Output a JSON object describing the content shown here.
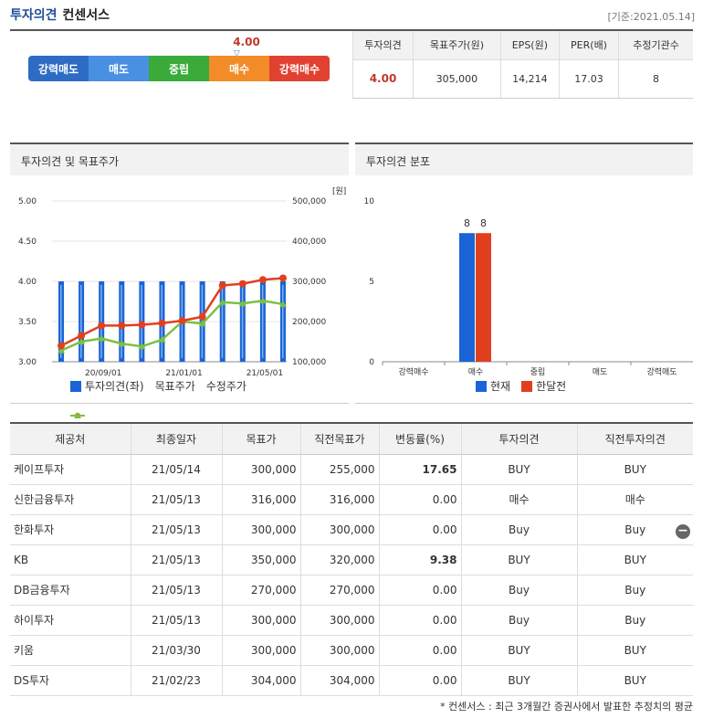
{
  "header": {
    "title": "투자의견",
    "subtitle": "컨센서스",
    "date": "[기준:2021.05.14]"
  },
  "scale": {
    "value": "4.00",
    "marker": "▽",
    "segments": [
      "강력매도",
      "매도",
      "중립",
      "매수",
      "강력매수"
    ]
  },
  "summary": {
    "headers": [
      "투자의견",
      "목표주가(원)",
      "EPS(원)",
      "PER(배)",
      "추정기관수"
    ],
    "values": [
      "4.00",
      "305,000",
      "14,214",
      "17.03",
      "8"
    ]
  },
  "panel_left": {
    "title": "투자의견 및 목표주가",
    "unit": "[원]",
    "legend": [
      "투자의견(좌)",
      "목표주가",
      "수정주가"
    ]
  },
  "panel_right": {
    "title": "투자의견 분포",
    "legend": [
      "현재",
      "한달전"
    ]
  },
  "colors": {
    "blue": "#1a64d6",
    "red": "#e0401e",
    "green": "#7ac143",
    "accent": "#1f4e99"
  },
  "chart_data": [
    {
      "type": "line",
      "title": "투자의견 및 목표주가",
      "y_left_ticks": [
        "5.00",
        "4.50",
        "4.00",
        "3.50",
        "3.00"
      ],
      "y_right_ticks": [
        "500,000",
        "400,000",
        "300,000",
        "200,000",
        "100,000"
      ],
      "x_ticks": [
        "20/09/01",
        "21/01/01",
        "21/05/01"
      ],
      "ylim_left": [
        3.0,
        5.0
      ],
      "ylim_right": [
        100000,
        500000
      ],
      "series": [
        {
          "name": "투자의견(좌)",
          "type": "bar",
          "values": [
            4,
            4,
            4,
            4,
            4,
            4,
            4,
            4,
            4,
            4,
            4,
            4
          ]
        },
        {
          "name": "목표주가",
          "values": [
            140000,
            165000,
            190000,
            190000,
            192000,
            196000,
            202000,
            212000,
            290000,
            294000,
            304000,
            308000
          ]
        },
        {
          "name": "수정주가",
          "values": [
            128000,
            150000,
            158000,
            145000,
            138000,
            155000,
            200000,
            195000,
            248000,
            245000,
            252000,
            243000
          ]
        }
      ]
    },
    {
      "type": "bar",
      "title": "투자의견 분포",
      "categories": [
        "강력매수",
        "매수",
        "중립",
        "매도",
        "강력매도"
      ],
      "y_ticks": [
        "10",
        "5",
        "0"
      ],
      "ylim": [
        0,
        10
      ],
      "series": [
        {
          "name": "현재",
          "values": [
            0,
            8,
            0,
            0,
            0
          ]
        },
        {
          "name": "한달전",
          "values": [
            0,
            8,
            0,
            0,
            0
          ]
        }
      ]
    }
  ],
  "table": {
    "headers": [
      "제공처",
      "최종일자",
      "목표가",
      "직전목표가",
      "변동률(%)",
      "투자의견",
      "직전투자의견"
    ],
    "rows": [
      [
        "케이프투자",
        "21/05/14",
        "300,000",
        "255,000",
        "17.65",
        "BUY",
        "BUY"
      ],
      [
        "신한금융투자",
        "21/05/13",
        "316,000",
        "316,000",
        "0.00",
        "매수",
        "매수"
      ],
      [
        "한화투자",
        "21/05/13",
        "300,000",
        "300,000",
        "0.00",
        "Buy",
        "Buy"
      ],
      [
        "KB",
        "21/05/13",
        "350,000",
        "320,000",
        "9.38",
        "BUY",
        "BUY"
      ],
      [
        "DB금융투자",
        "21/05/13",
        "270,000",
        "270,000",
        "0.00",
        "Buy",
        "Buy"
      ],
      [
        "하이투자",
        "21/05/13",
        "300,000",
        "300,000",
        "0.00",
        "Buy",
        "Buy"
      ],
      [
        "키움",
        "21/03/30",
        "300,000",
        "300,000",
        "0.00",
        "BUY",
        "BUY"
      ],
      [
        "DS투자",
        "21/02/23",
        "304,000",
        "304,000",
        "0.00",
        "BUY",
        "BUY"
      ]
    ]
  },
  "minus_icon": "−",
  "footnote": "* 컨센서스 : 최근 3개월간 증권사에서 발표한 추정치의 평균"
}
